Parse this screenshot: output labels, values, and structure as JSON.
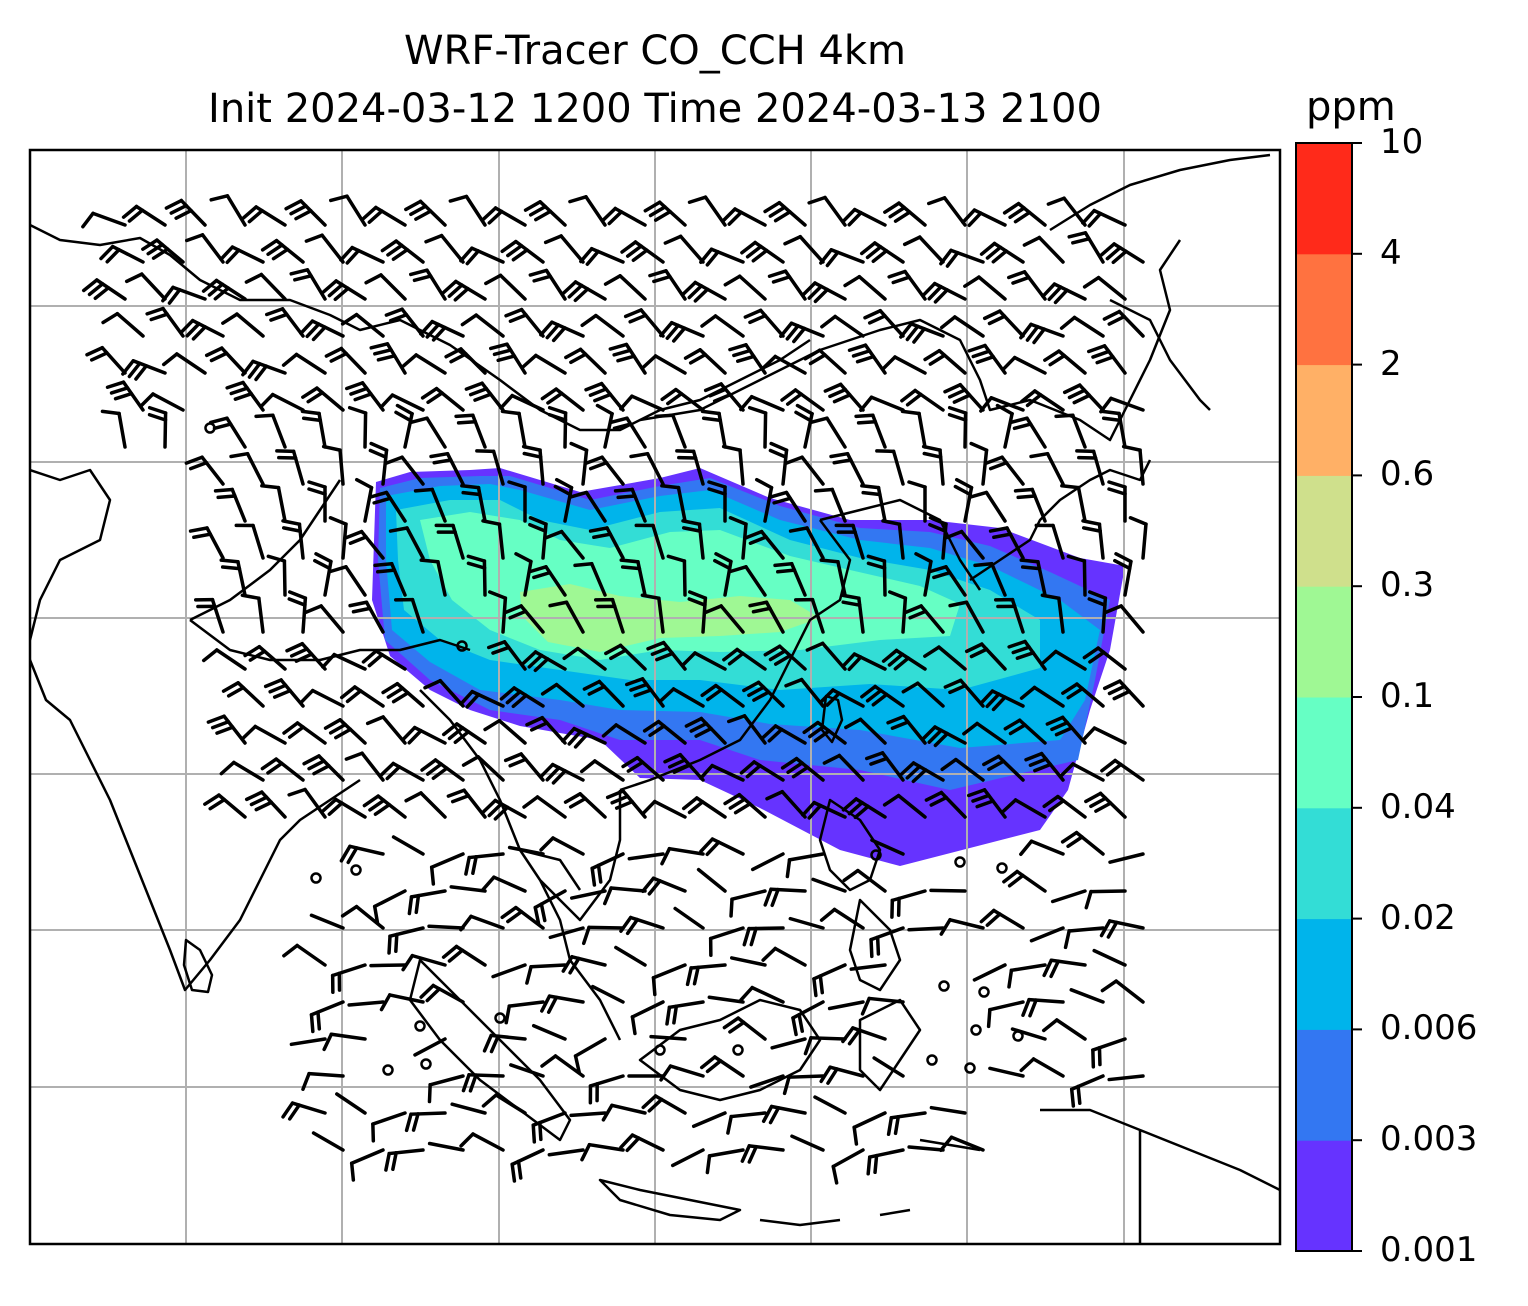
{
  "title": {
    "line1": "WRF-Tracer CO_CCH 4km",
    "line2": "Init 2024-03-12 1200 Time 2024-03-13 2100"
  },
  "colorbar": {
    "unit": "ppm",
    "ticks": [
      "0.001",
      "0.003",
      "0.006",
      "0.02",
      "0.04",
      "0.1",
      "0.3",
      "0.6",
      "2",
      "4",
      "10"
    ],
    "colors": [
      "#6633ff",
      "#3377f2",
      "#00b4eb",
      "#33ddd6",
      "#66ffc4",
      "#9ff894",
      "#cfe08c",
      "#ffb066",
      "#ff7240",
      "#ff2a1a"
    ]
  },
  "map": {
    "frame_color": "#000000",
    "gridline_color": "#b0b0b0",
    "coastline_color": "#000000",
    "barb_color": "#000000"
  }
}
